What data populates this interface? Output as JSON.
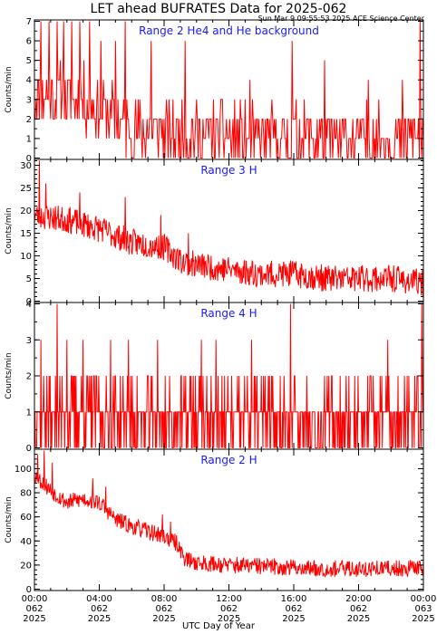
{
  "header": {
    "title": "LET ahead BUFRATES Data for 2025-062",
    "timestamp": "Sun Mar  9 09:55:53 2025 ACE Science Center"
  },
  "colors": {
    "trace": "#ff0000",
    "panel_title": "#1a1aff",
    "axes": "#000000",
    "background": "#ffffff"
  },
  "chart_data": [
    {
      "type": "line",
      "title": "Range 2 He4 and He background",
      "ylabel": "Counts/min",
      "ylim": [
        0,
        7
      ],
      "yticks": [
        0,
        1,
        2,
        3,
        4,
        5,
        6,
        7
      ],
      "x_range_hours": [
        0,
        24
      ],
      "series": [
        {
          "resolution_minutes": 3,
          "segments_description_free": true,
          "profile": [
            [
              0,
              3.2
            ],
            [
              3,
              3.0
            ],
            [
              6,
              1.6
            ],
            [
              9,
              1.2
            ],
            [
              12,
              1.1
            ],
            [
              15,
              1.0
            ],
            [
              18,
              1.0
            ],
            [
              21,
              1.0
            ],
            [
              24,
              1.0
            ]
          ],
          "noise": 1.6,
          "spikes": [
            [
              0.4,
              7
            ],
            [
              0.9,
              7
            ],
            [
              1.4,
              7
            ],
            [
              1.8,
              7
            ],
            [
              2.3,
              7
            ],
            [
              2.8,
              7
            ],
            [
              3.4,
              7
            ],
            [
              4.1,
              6
            ],
            [
              5.0,
              6
            ],
            [
              5.6,
              7
            ],
            [
              7.2,
              6
            ],
            [
              9.3,
              6
            ],
            [
              13.3,
              4
            ],
            [
              15.9,
              6
            ],
            [
              17.9,
              5
            ],
            [
              20.6,
              4
            ],
            [
              22.7,
              4
            ],
            [
              23.8,
              7
            ]
          ],
          "seed": 11
        }
      ]
    },
    {
      "type": "line",
      "title": "Range 3 H",
      "ylabel": "Counts/min",
      "ylim": [
        0,
        31
      ],
      "yticks": [
        0,
        5,
        10,
        15,
        20,
        25,
        30
      ],
      "x_range_hours": [
        0,
        24
      ],
      "series": [
        {
          "resolution_minutes": 2,
          "profile": [
            [
              0,
              19
            ],
            [
              2,
              18
            ],
            [
              4,
              16
            ],
            [
              6,
              13
            ],
            [
              8,
              12
            ],
            [
              9,
              9
            ],
            [
              10,
              8
            ],
            [
              12,
              7
            ],
            [
              14,
              6
            ],
            [
              16,
              6
            ],
            [
              18,
              5
            ],
            [
              20,
              5
            ],
            [
              22,
              5
            ],
            [
              24,
              4
            ]
          ],
          "noise": 3.0,
          "spikes": [
            [
              0.3,
              31
            ],
            [
              0.7,
              26
            ],
            [
              2.8,
              24
            ],
            [
              5.6,
              23
            ],
            [
              7.8,
              19
            ],
            [
              9.5,
              15
            ]
          ],
          "seed": 23
        }
      ]
    },
    {
      "type": "line",
      "title": "Range 4 H",
      "ylabel": "Counts/min",
      "ylim": [
        0,
        4
      ],
      "yticks": [
        0,
        1,
        2,
        3,
        4
      ],
      "x_range_hours": [
        0,
        24
      ],
      "series": [
        {
          "resolution_minutes": 2,
          "profile": [
            [
              0,
              0.9
            ],
            [
              24,
              0.8
            ]
          ],
          "noise": 0.9,
          "discrete": true,
          "spikes": [
            [
              0.4,
              3
            ],
            [
              1.4,
              4
            ],
            [
              2.0,
              3
            ],
            [
              3.0,
              3
            ],
            [
              4.7,
              3
            ],
            [
              5.8,
              3
            ],
            [
              7.6,
              3
            ],
            [
              10.3,
              3
            ],
            [
              11.2,
              3
            ],
            [
              13.4,
              3
            ],
            [
              15.8,
              4
            ],
            [
              21.8,
              3
            ],
            [
              23.9,
              4
            ]
          ],
          "seed": 37
        }
      ]
    },
    {
      "type": "line",
      "title": "Range 2 H",
      "ylabel": "Counts/min",
      "ylim": [
        0,
        115
      ],
      "yticks": [
        0,
        20,
        40,
        60,
        80,
        100
      ],
      "x_range_hours": [
        0,
        24
      ],
      "series": [
        {
          "resolution_minutes": 2,
          "profile": [
            [
              0,
              95
            ],
            [
              1,
              82
            ],
            [
              2,
              72
            ],
            [
              3,
              75
            ],
            [
              4,
              72
            ],
            [
              5,
              58
            ],
            [
              6,
              52
            ],
            [
              7,
              48
            ],
            [
              8,
              44
            ],
            [
              8.8,
              38
            ],
            [
              9.3,
              25
            ],
            [
              10,
              22
            ],
            [
              12,
              20
            ],
            [
              14,
              19
            ],
            [
              16,
              18
            ],
            [
              18,
              17
            ],
            [
              20,
              17
            ],
            [
              22,
              17
            ],
            [
              24,
              18
            ]
          ],
          "noise": 7,
          "spikes": [
            [
              0.2,
              112
            ],
            [
              0.6,
              115
            ],
            [
              1.1,
              105
            ],
            [
              3.6,
              92
            ],
            [
              4.4,
              85
            ],
            [
              7.9,
              62
            ],
            [
              8.4,
              56
            ]
          ],
          "seed": 53
        }
      ]
    }
  ],
  "x_axis": {
    "label": "UTC Day of Year",
    "ticks": [
      {
        "time": "00:00",
        "doy": "062",
        "year": "2025",
        "hours": 0
      },
      {
        "time": "04:00",
        "doy": "062",
        "year": "2025",
        "hours": 4
      },
      {
        "time": "08:00",
        "doy": "062",
        "year": "2025",
        "hours": 8
      },
      {
        "time": "12:00",
        "doy": "062",
        "year": "2025",
        "hours": 12
      },
      {
        "time": "16:00",
        "doy": "062",
        "year": "2025",
        "hours": 16
      },
      {
        "time": "20:00",
        "doy": "062",
        "year": "2025",
        "hours": 20
      },
      {
        "time": "00:00",
        "doy": "063",
        "year": "2025",
        "hours": 24
      }
    ]
  }
}
